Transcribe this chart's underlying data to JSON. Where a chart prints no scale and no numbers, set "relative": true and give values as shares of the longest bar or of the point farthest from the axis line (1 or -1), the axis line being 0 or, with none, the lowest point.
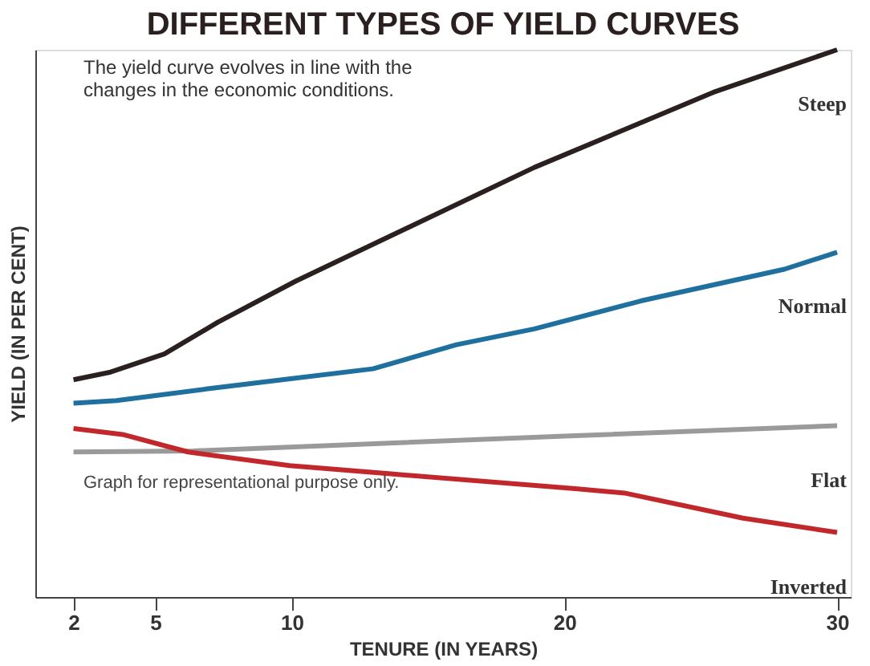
{
  "chart_data": {
    "type": "line",
    "title": "DIFFERENT TYPES OF YIELD CURVES",
    "xlabel": "TENURE (IN YEARS)",
    "ylabel": "YIELD (IN PER CENT)",
    "relative": true,
    "xlim": [
      0.6,
      30.5
    ],
    "xticks": [
      2,
      5,
      10,
      20,
      30
    ],
    "tick_labels": "x",
    "grid": false,
    "legend": false,
    "marker": "none",
    "line_style": "solid",
    "annotations": [
      "The yield curve evolves in line with the changes in the economic conditions.",
      "Graph for representational purpose only."
    ],
    "series": [
      {
        "name": "Steep",
        "color": "#2b2020",
        "x": [
          2,
          3.36,
          5.33,
          7.29,
          10.14,
          12.33,
          18.9,
          25.45,
          30
        ],
        "values": [
          0.397,
          0.411,
          0.444,
          0.502,
          0.577,
          0.629,
          0.785,
          0.922,
          1.0
        ]
      },
      {
        "name": "Normal",
        "color": "#1f6f9f",
        "x": [
          2,
          3.57,
          6.86,
          10.14,
          12.98,
          16.04,
          18.9,
          22.8,
          28.07,
          30
        ],
        "values": [
          0.354,
          0.359,
          0.38,
          0.4,
          0.417,
          0.461,
          0.49,
          0.541,
          0.599,
          0.63
        ]
      },
      {
        "name": "Flat",
        "color": "#9a9a9a",
        "x": [
          2,
          6.4,
          20,
          30
        ],
        "values": [
          0.265,
          0.267,
          0.294,
          0.313
        ]
      },
      {
        "name": "Inverted",
        "color": "#c0282b",
        "x": [
          2,
          3.8,
          6.2,
          9.92,
          13.64,
          20.4,
          22.2,
          26.55,
          30
        ],
        "values": [
          0.308,
          0.297,
          0.265,
          0.24,
          0.225,
          0.198,
          0.19,
          0.144,
          0.118
        ]
      }
    ]
  }
}
